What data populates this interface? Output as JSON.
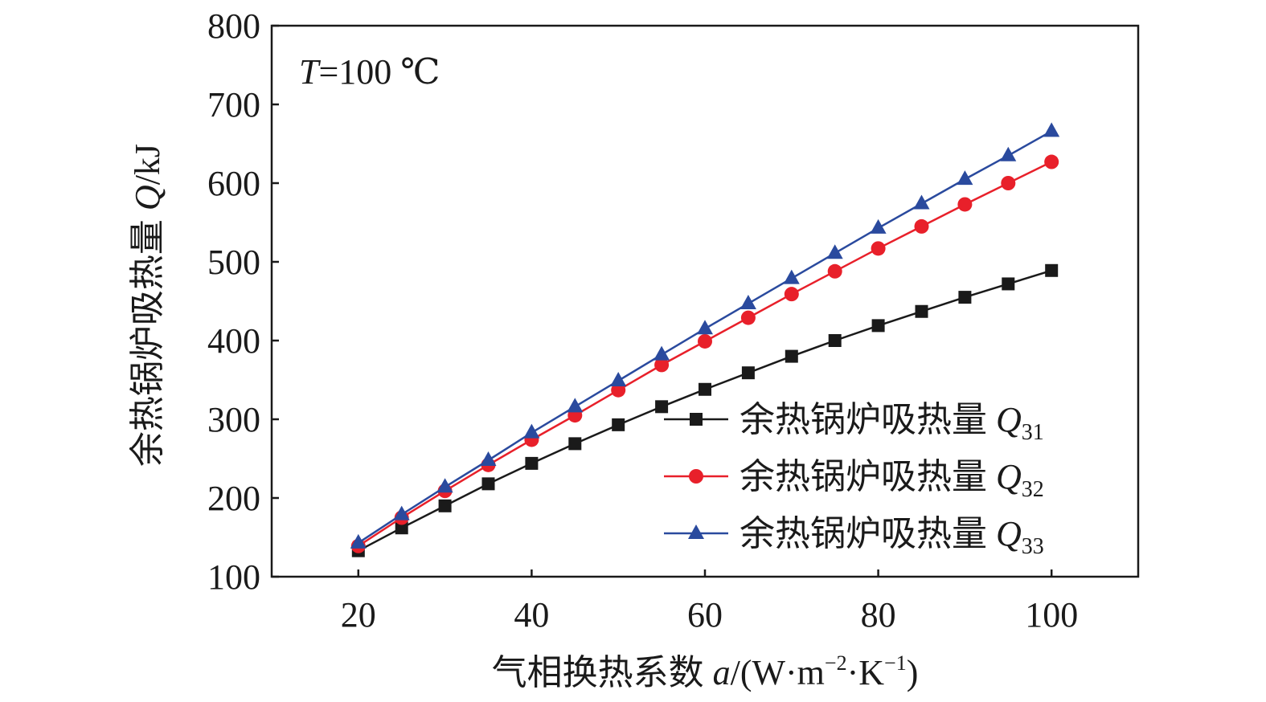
{
  "chart_data": {
    "type": "line",
    "annotation": {
      "var": "T",
      "rest": "=100 ℃"
    },
    "xlabel": {
      "text": "气相换热系数 ",
      "var": "a",
      "unit_open": "/(W·m",
      "sup1": "−2",
      "mid": "·K",
      "sup2": "−1",
      "unit_close": ")"
    },
    "ylabel": {
      "text": "余热锅炉吸热量 ",
      "var": "Q",
      "unit": "/kJ"
    },
    "xlim": [
      10,
      110
    ],
    "ylim": [
      100,
      800
    ],
    "xticks": [
      "20",
      "40",
      "60",
      "80",
      "100"
    ],
    "yticks": [
      "100",
      "200",
      "300",
      "400",
      "500",
      "600",
      "700",
      "800"
    ],
    "grid": false,
    "legend_position": "lower-right",
    "x": [
      20,
      25,
      30,
      35,
      40,
      45,
      50,
      55,
      60,
      65,
      70,
      75,
      80,
      85,
      90,
      95,
      100
    ],
    "series": [
      {
        "name": "余热锅炉吸热量 ",
        "name_var": "Q",
        "name_sub": "31",
        "color": "#1a1a1a",
        "marker": "square",
        "values": [
          133,
          162,
          190,
          218,
          244,
          269,
          293,
          316,
          338,
          359,
          380,
          400,
          419,
          437,
          455,
          472,
          489
        ]
      },
      {
        "name": "余热锅炉吸热量 ",
        "name_var": "Q",
        "name_sub": "32",
        "color": "#e8202a",
        "marker": "circle",
        "values": [
          139,
          175,
          209,
          242,
          274,
          305,
          337,
          369,
          399,
          429,
          459,
          488,
          517,
          545,
          573,
          600,
          627
        ]
      },
      {
        "name": "余热锅炉吸热量 ",
        "name_var": "Q",
        "name_sub": "33",
        "color": "#2a4a9e",
        "marker": "triangle",
        "values": [
          143,
          179,
          214,
          248,
          283,
          316,
          349,
          382,
          415,
          447,
          479,
          511,
          543,
          574,
          605,
          635,
          666
        ]
      }
    ]
  }
}
